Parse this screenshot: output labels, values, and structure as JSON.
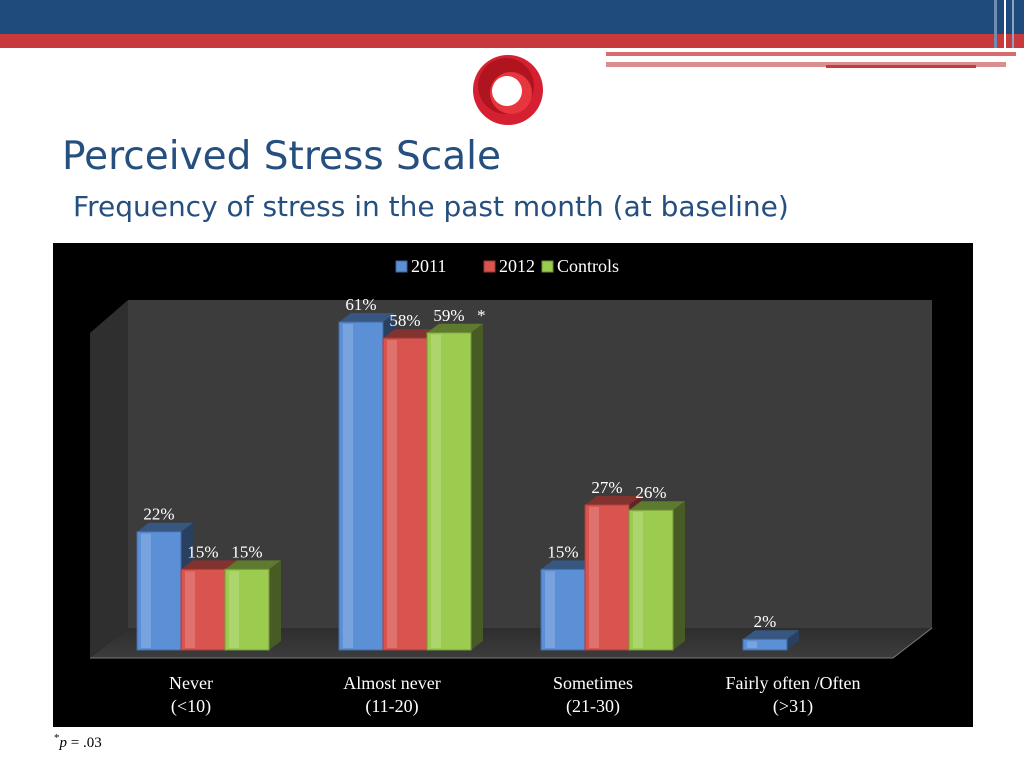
{
  "slide": {
    "title": "Perceived Stress Scale",
    "subtitle": "Frequency of stress in the past month (at baseline)",
    "footnote_symbol": "*",
    "footnote_var": "p",
    "footnote_rest": " = .03"
  },
  "colors": {
    "header_blue": "#1f4a7c",
    "header_red": "#c8393c",
    "title_blue": "#254f7e",
    "logo_red": "#d42030"
  },
  "chart_data": {
    "type": "bar",
    "categories": [
      {
        "line1": "Never",
        "line2": "(<10)"
      },
      {
        "line1": "Almost never",
        "line2": "(11-20)"
      },
      {
        "line1": "Sometimes",
        "line2": "(21-30)"
      },
      {
        "line1": "Fairly often /Often",
        "line2": "(>31)"
      }
    ],
    "series": [
      {
        "name": "2011",
        "color": "#5b8fd6",
        "values": [
          22,
          61,
          15,
          2
        ],
        "labels": [
          "22%",
          "61%",
          "15%",
          "2%"
        ]
      },
      {
        "name": "2012",
        "color": "#d9534f",
        "values": [
          15,
          58,
          27,
          null
        ],
        "labels": [
          "15%",
          "58%",
          "27%",
          ""
        ]
      },
      {
        "name": "Controls",
        "color": "#9ccc4f",
        "values": [
          15,
          59,
          26,
          null
        ],
        "labels": [
          "15%",
          "59%",
          "26%",
          ""
        ]
      }
    ],
    "annotations": [
      {
        "category": 1,
        "text": "*"
      }
    ],
    "ylim": [
      0,
      61
    ],
    "legend_position": "top",
    "grid": false,
    "xlabel": "",
    "ylabel": ""
  }
}
